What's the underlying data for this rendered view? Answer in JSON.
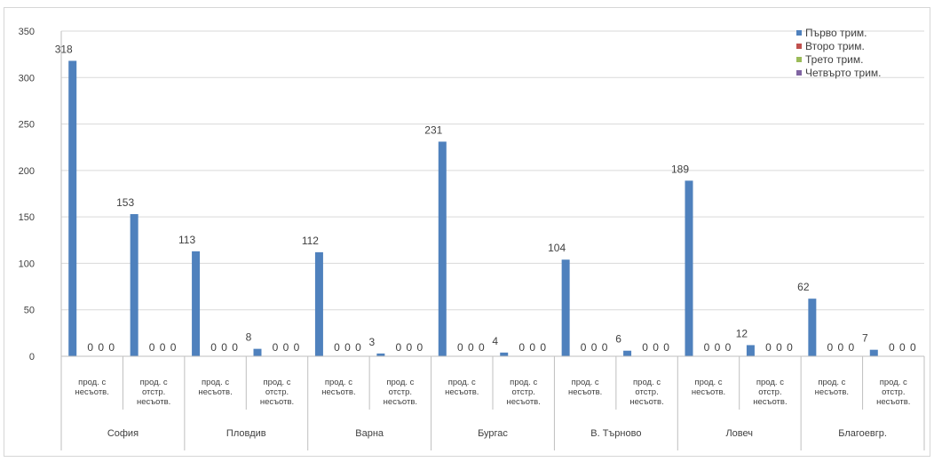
{
  "chart_data": {
    "type": "bar",
    "title": "",
    "xlabel": "",
    "ylabel": "",
    "ylim": [
      0,
      350
    ],
    "yticks": [
      0,
      50,
      100,
      150,
      200,
      250,
      300,
      350
    ],
    "grid": true,
    "legend_position": "top-right",
    "groups": [
      {
        "name": "София",
        "categories": [
          [
            "прод. с",
            "несъотв."
          ],
          [
            "прод. с",
            "отстр.",
            "несъотв."
          ]
        ]
      },
      {
        "name": "Пловдив",
        "categories": [
          [
            "прод. с",
            "несъотв."
          ],
          [
            "прод. с",
            "отстр.",
            "несъотв."
          ]
        ]
      },
      {
        "name": "Варна",
        "categories": [
          [
            "прод. с",
            "несъотв."
          ],
          [
            "прод. с",
            "отстр.",
            "несъотв."
          ]
        ]
      },
      {
        "name": "Бургас",
        "categories": [
          [
            "прод. с",
            "несъотв."
          ],
          [
            "прод. с",
            "отстр.",
            "несъотв."
          ]
        ]
      },
      {
        "name": "В. Търново",
        "categories": [
          [
            "прод. с",
            "несъотв."
          ],
          [
            "прод. с",
            "отстр.",
            "несъотв."
          ]
        ]
      },
      {
        "name": "Ловеч",
        "categories": [
          [
            "прод. с",
            "несъотв."
          ],
          [
            "прод. с",
            "отстр.",
            "несъотв."
          ]
        ]
      },
      {
        "name": "Благоевгр.",
        "categories": [
          [
            "прод. с",
            "несъотв."
          ],
          [
            "прод. с",
            "отстр.",
            "несъотв."
          ]
        ]
      }
    ],
    "series": [
      {
        "name": "Първо трим.",
        "color": "#4f81bd",
        "values": [
          318,
          153,
          113,
          8,
          112,
          3,
          231,
          4,
          104,
          6,
          189,
          12,
          62,
          7
        ]
      },
      {
        "name": "Второ трим.",
        "color": "#c0504d",
        "values": [
          0,
          0,
          0,
          0,
          0,
          0,
          0,
          0,
          0,
          0,
          0,
          0,
          0,
          0
        ]
      },
      {
        "name": "Трето трим.",
        "color": "#9bbb59",
        "values": [
          0,
          0,
          0,
          0,
          0,
          0,
          0,
          0,
          0,
          0,
          0,
          0,
          0,
          0
        ]
      },
      {
        "name": "Четвърто трим.",
        "color": "#8064a2",
        "values": [
          0,
          0,
          0,
          0,
          0,
          0,
          0,
          0,
          0,
          0,
          0,
          0,
          0,
          0
        ]
      }
    ]
  }
}
